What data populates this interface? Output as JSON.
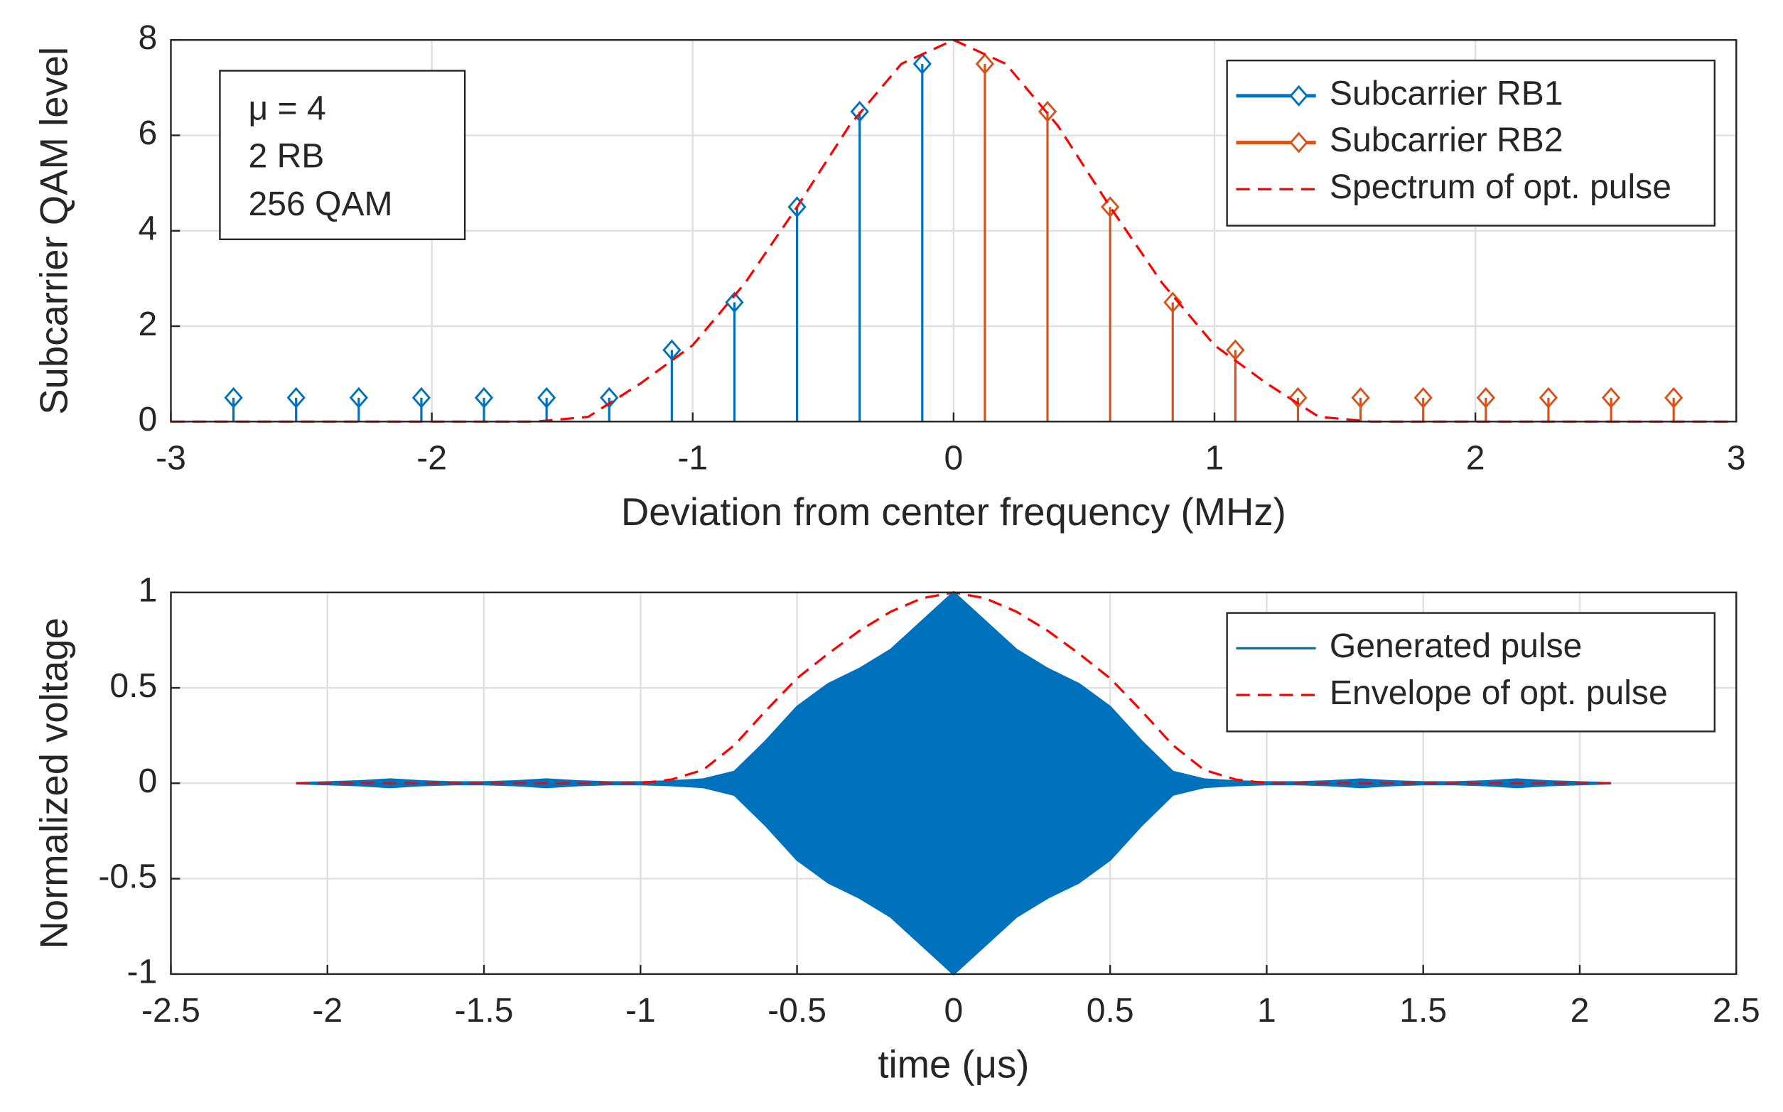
{
  "chart_data": [
    {
      "type": "stem",
      "xlabel": "Deviation from center frequency (MHz)",
      "ylabel": "Subcarrier QAM level",
      "xlim": [
        -3,
        3
      ],
      "xticks": [
        -3,
        -2,
        -1,
        0,
        1,
        2,
        3
      ],
      "ylim": [
        0,
        8
      ],
      "yticks": [
        0,
        2,
        4,
        6,
        8
      ],
      "grid": true,
      "legend": "northeast",
      "annotations": [
        "μ = 4",
        "2 RB",
        "256 QAM"
      ],
      "series": [
        {
          "name": "Subcarrier RB1",
          "color": "#0072bd",
          "kind": "stem",
          "x": [
            -2.76,
            -2.52,
            -2.28,
            -2.04,
            -1.8,
            -1.56,
            -1.32,
            -1.08,
            -0.84,
            -0.6,
            -0.36,
            -0.12
          ],
          "values": [
            0.5,
            0.5,
            0.5,
            0.5,
            0.5,
            0.5,
            0.5,
            1.5,
            2.5,
            4.5,
            6.5,
            7.5
          ]
        },
        {
          "name": "Subcarrier RB2",
          "color": "#d95319",
          "kind": "stem",
          "x": [
            0.12,
            0.36,
            0.6,
            0.84,
            1.08,
            1.32,
            1.56,
            1.8,
            2.04,
            2.28,
            2.52,
            2.76
          ],
          "values": [
            7.5,
            6.5,
            4.5,
            2.5,
            1.5,
            0.5,
            0.5,
            0.5,
            0.5,
            0.5,
            0.5,
            0.5
          ]
        },
        {
          "name": "Spectrum of opt. pulse",
          "color": "#ff0000",
          "kind": "dashed",
          "x": [
            -3,
            -2.6,
            -2.2,
            -1.8,
            -1.6,
            -1.4,
            -1.2,
            -1,
            -0.8,
            -0.6,
            -0.4,
            -0.2,
            0,
            0.2,
            0.4,
            0.6,
            0.8,
            1,
            1.2,
            1.4,
            1.6,
            1.8,
            2.2,
            2.6,
            3
          ],
          "values": [
            0,
            0,
            0,
            0,
            0,
            0.1,
            0.8,
            1.6,
            2.9,
            4.5,
            6.2,
            7.5,
            8,
            7.5,
            6.2,
            4.5,
            2.9,
            1.6,
            0.8,
            0.1,
            0,
            0,
            0,
            0,
            0
          ]
        }
      ]
    },
    {
      "type": "line",
      "xlabel": "time (μs)",
      "ylabel": "Normalized voltage",
      "xlim": [
        -2.5,
        2.5
      ],
      "xticks": [
        -2.5,
        -2,
        -1.5,
        -1,
        -0.5,
        0,
        0.5,
        1,
        1.5,
        2,
        2.5
      ],
      "ylim": [
        -1,
        1
      ],
      "yticks": [
        -1,
        -0.5,
        0,
        0.5,
        1
      ],
      "grid": true,
      "legend": "northeast",
      "series": [
        {
          "name": "Generated pulse",
          "color": "#0072bd",
          "kind": "band",
          "x": [
            -2.1,
            -2,
            -1.9,
            -1.8,
            -1.7,
            -1.6,
            -1.5,
            -1.4,
            -1.3,
            -1.2,
            -1.1,
            -1,
            -0.9,
            -0.8,
            -0.7,
            -0.6,
            -0.5,
            -0.4,
            -0.3,
            -0.2,
            -0.1,
            0,
            0.1,
            0.2,
            0.3,
            0.4,
            0.5,
            0.6,
            0.7,
            0.8,
            0.9,
            1,
            1.1,
            1.2,
            1.3,
            1.4,
            1.5,
            1.6,
            1.7,
            1.8,
            1.9,
            2,
            2.1
          ],
          "values": [
            0,
            0.005,
            0.01,
            0.02,
            0.01,
            0.005,
            0.005,
            0.01,
            0.02,
            0.01,
            0.005,
            0.005,
            0.01,
            0.02,
            0.06,
            0.22,
            0.4,
            0.52,
            0.6,
            0.7,
            0.85,
            1,
            0.85,
            0.7,
            0.6,
            0.52,
            0.4,
            0.22,
            0.06,
            0.02,
            0.01,
            0.005,
            0.005,
            0.01,
            0.02,
            0.01,
            0.005,
            0.005,
            0.01,
            0.02,
            0.01,
            0.005,
            0
          ]
        },
        {
          "name": "Envelope of opt. pulse",
          "color": "#ff0000",
          "kind": "dashed",
          "x": [
            -2.1,
            -1.5,
            -1,
            -0.9,
            -0.8,
            -0.7,
            -0.6,
            -0.5,
            -0.4,
            -0.3,
            -0.2,
            -0.1,
            0,
            0.1,
            0.2,
            0.3,
            0.4,
            0.5,
            0.6,
            0.7,
            0.8,
            0.9,
            1,
            1.5,
            2.1
          ],
          "values": [
            0,
            0,
            0,
            0.02,
            0.07,
            0.2,
            0.38,
            0.55,
            0.68,
            0.8,
            0.9,
            0.97,
            1,
            0.97,
            0.9,
            0.8,
            0.68,
            0.55,
            0.38,
            0.2,
            0.07,
            0.02,
            0,
            0,
            0
          ]
        }
      ]
    }
  ]
}
